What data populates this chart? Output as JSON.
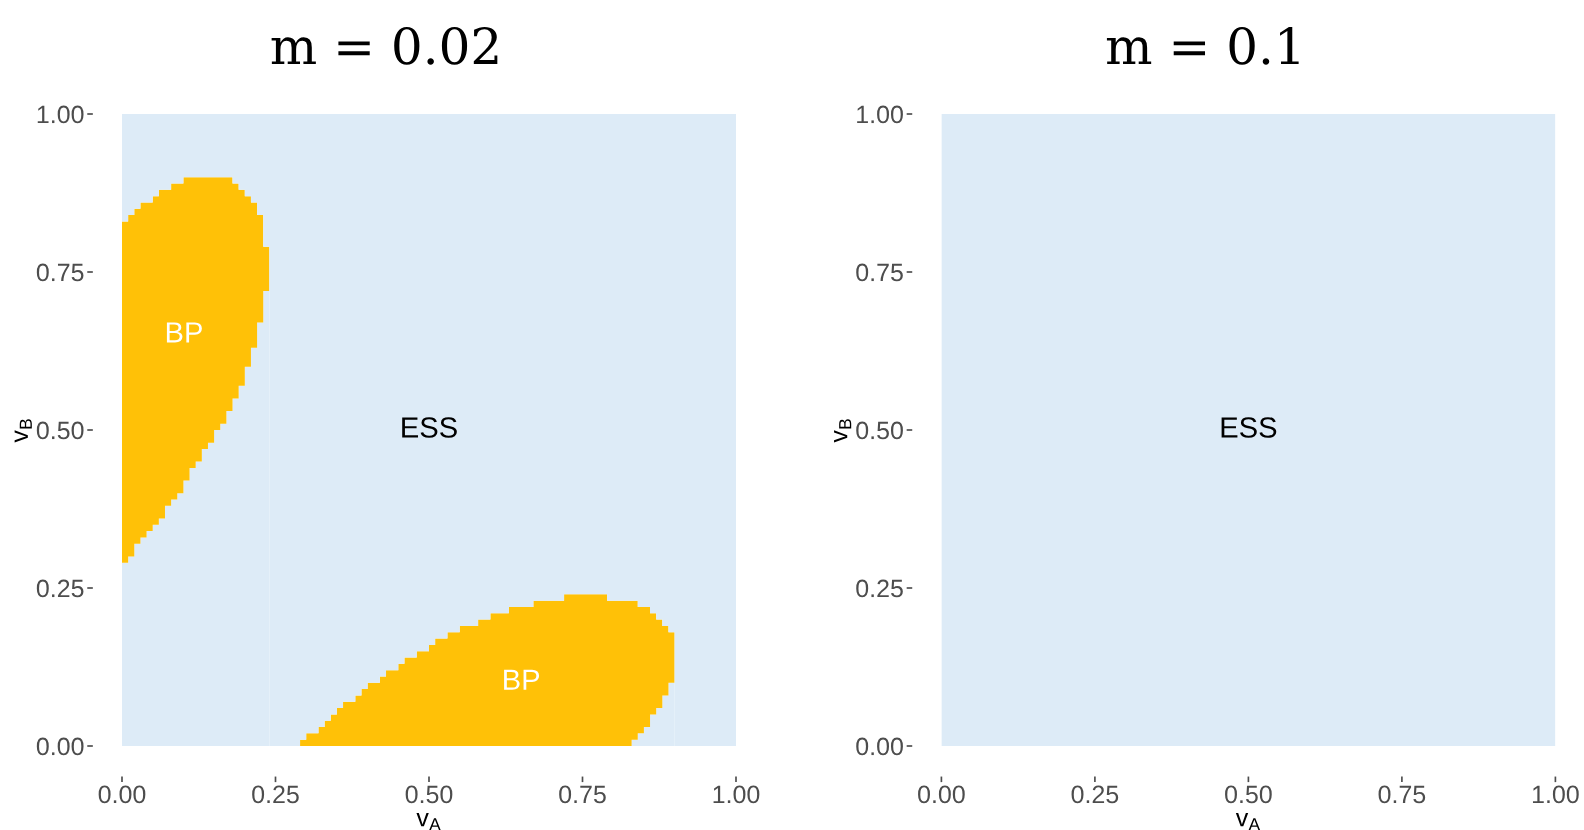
{
  "chart_data": [
    {
      "type": "area",
      "stacked": true,
      "title": "m = 0.02",
      "xlabel": "v$_{A}$",
      "ylabel": "v$_{B}$",
      "xlim": [
        0,
        1
      ],
      "ylim": [
        0,
        1
      ],
      "xticks": [
        {
          "value": 0,
          "label": "0.00"
        },
        {
          "value": 0.25,
          "label": "0.25"
        },
        {
          "value": 0.5,
          "label": "0.50"
        },
        {
          "value": 0.75,
          "label": "0.75"
        },
        {
          "value": 1,
          "label": "1.00"
        }
      ],
      "yticks": [
        {
          "value": 0,
          "label": "0.00"
        },
        {
          "value": 0.25,
          "label": "0.25"
        },
        {
          "value": 0.5,
          "label": "0.50"
        },
        {
          "value": 0.75,
          "label": "0.75"
        },
        {
          "value": 1,
          "label": "1.00"
        }
      ],
      "x": [
        0,
        0.01,
        0.02,
        0.03,
        0.04,
        0.05,
        0.06,
        0.07,
        0.08,
        0.09,
        0.1,
        0.11,
        0.12,
        0.13,
        0.14,
        0.15,
        0.16,
        0.17,
        0.18,
        0.19,
        0.2,
        0.21,
        0.22,
        0.23,
        0.24,
        0.25,
        0.26,
        0.27,
        0.28,
        0.29,
        0.3,
        0.31,
        0.32,
        0.33,
        0.34,
        0.35,
        0.36,
        0.37,
        0.38,
        0.39,
        0.4,
        0.41,
        0.42,
        0.43,
        0.44,
        0.45,
        0.46,
        0.47,
        0.48,
        0.49,
        0.5,
        0.51,
        0.52,
        0.53,
        0.54,
        0.55,
        0.56,
        0.57,
        0.58,
        0.59,
        0.6,
        0.61,
        0.62,
        0.63,
        0.64,
        0.65,
        0.66,
        0.67,
        0.68,
        0.69,
        0.7,
        0.71,
        0.72,
        0.73,
        0.74,
        0.75,
        0.76,
        0.77,
        0.78,
        0.79,
        0.8,
        0.81,
        0.82,
        0.83,
        0.84,
        0.85,
        0.86,
        0.87,
        0.88,
        0.89,
        0.9,
        0.91,
        0.92,
        0.93,
        0.94,
        0.95,
        0.96,
        0.97,
        0.98,
        0.99,
        1
      ],
      "series": [
        {
          "color": "#ddebf7",
          "values": [
            0.29,
            0.3,
            0.32,
            0.33,
            0.34,
            0.35,
            0.36,
            0.38,
            0.39,
            0.4,
            0.42,
            0.44,
            0.45,
            0.47,
            0.48,
            0.5,
            0.51,
            0.53,
            0.55,
            0.57,
            0.6,
            0.63,
            0.67,
            0.72,
            0,
            0,
            0,
            0,
            0,
            0,
            0,
            0,
            0,
            0,
            0,
            0,
            0,
            0,
            0,
            0,
            0,
            0,
            0,
            0,
            0,
            0,
            0,
            0,
            0,
            0,
            0,
            0,
            0,
            0,
            0,
            0,
            0,
            0,
            0,
            0,
            0,
            0,
            0,
            0,
            0,
            0,
            0,
            0,
            0,
            0,
            0,
            0,
            0,
            0,
            0,
            0,
            0,
            0,
            0,
            0,
            0,
            0,
            0,
            0.01,
            0.02,
            0.03,
            0.05,
            0.06,
            0.08,
            0.1,
            0,
            0,
            0,
            0,
            0,
            0,
            0,
            0,
            0,
            0,
            0
          ]
        },
        {
          "name": "BP",
          "color": "#ffc107",
          "values": [
            0.54,
            0.54,
            0.53,
            0.53,
            0.52,
            0.52,
            0.52,
            0.5,
            0.5,
            0.49,
            0.48,
            0.46,
            0.45,
            0.43,
            0.42,
            0.4,
            0.39,
            0.37,
            0.34,
            0.31,
            0.27,
            0.23,
            0.17,
            0.07,
            0,
            0,
            0,
            0,
            0,
            0.01,
            0.02,
            0.02,
            0.03,
            0.04,
            0.05,
            0.06,
            0.07,
            0.07,
            0.08,
            0.09,
            0.1,
            0.1,
            0.11,
            0.12,
            0.12,
            0.13,
            0.14,
            0.14,
            0.15,
            0.15,
            0.16,
            0.17,
            0.17,
            0.18,
            0.18,
            0.19,
            0.19,
            0.19,
            0.2,
            0.2,
            0.21,
            0.21,
            0.21,
            0.22,
            0.22,
            0.22,
            0.22,
            0.23,
            0.23,
            0.23,
            0.23,
            0.23,
            0.24,
            0.24,
            0.24,
            0.24,
            0.24,
            0.24,
            0.24,
            0.23,
            0.23,
            0.23,
            0.23,
            0.22,
            0.2,
            0.19,
            0.16,
            0.14,
            0.11,
            0.08,
            0,
            0,
            0,
            0,
            0,
            0,
            0,
            0,
            0,
            0,
            0
          ]
        },
        {
          "color": "#ddebf7",
          "values": [
            0.17,
            0.16,
            0.15,
            0.14,
            0.14,
            0.13,
            0.12,
            0.12,
            0.11,
            0.11,
            0.1,
            0.1,
            0.1,
            0.1,
            0.1,
            0.1,
            0.1,
            0.1,
            0.11,
            0.12,
            0.13,
            0.14,
            0.16,
            0.21,
            1,
            1,
            1,
            1,
            1,
            0.99,
            0.98,
            0.98,
            0.97,
            0.96,
            0.95,
            0.94,
            0.93,
            0.93,
            0.92,
            0.91,
            0.9,
            0.9,
            0.89,
            0.88,
            0.88,
            0.87,
            0.86,
            0.86,
            0.85,
            0.85,
            0.84,
            0.83,
            0.83,
            0.82,
            0.82,
            0.81,
            0.81,
            0.81,
            0.8,
            0.8,
            0.79,
            0.79,
            0.79,
            0.78,
            0.78,
            0.78,
            0.78,
            0.77,
            0.77,
            0.77,
            0.77,
            0.77,
            0.76,
            0.76,
            0.76,
            0.76,
            0.76,
            0.76,
            0.76,
            0.77,
            0.77,
            0.77,
            0.77,
            0.77,
            0.78,
            0.78,
            0.79,
            0.8,
            0.81,
            0.82,
            1,
            1,
            1,
            1,
            1,
            1,
            1,
            1,
            1,
            1,
            1
          ]
        }
      ],
      "annotations": [
        "ESS"
      ]
    },
    {
      "type": "area",
      "title": "m = 0.1",
      "xlabel": "v$_{A}$",
      "ylabel": "v$_{B}$",
      "xlim": [
        0,
        1
      ],
      "ylim": [
        0,
        1
      ],
      "xticks": [
        {
          "value": 0,
          "label": "0.00"
        },
        {
          "value": 0.25,
          "label": "0.25"
        },
        {
          "value": 0.5,
          "label": "0.50"
        },
        {
          "value": 0.75,
          "label": "0.75"
        },
        {
          "value": 1,
          "label": "1.00"
        }
      ],
      "yticks": [
        {
          "value": 0,
          "label": "0.00"
        },
        {
          "value": 0.25,
          "label": "0.25"
        },
        {
          "value": 0.5,
          "label": "0.50"
        },
        {
          "value": 0.75,
          "label": "0.75"
        },
        {
          "value": 1,
          "label": "1.00"
        }
      ],
      "bands": [
        {
          "axis": "x",
          "from": 0,
          "to": 1,
          "label": "ESS",
          "color": "#ddebf7"
        }
      ]
    }
  ]
}
